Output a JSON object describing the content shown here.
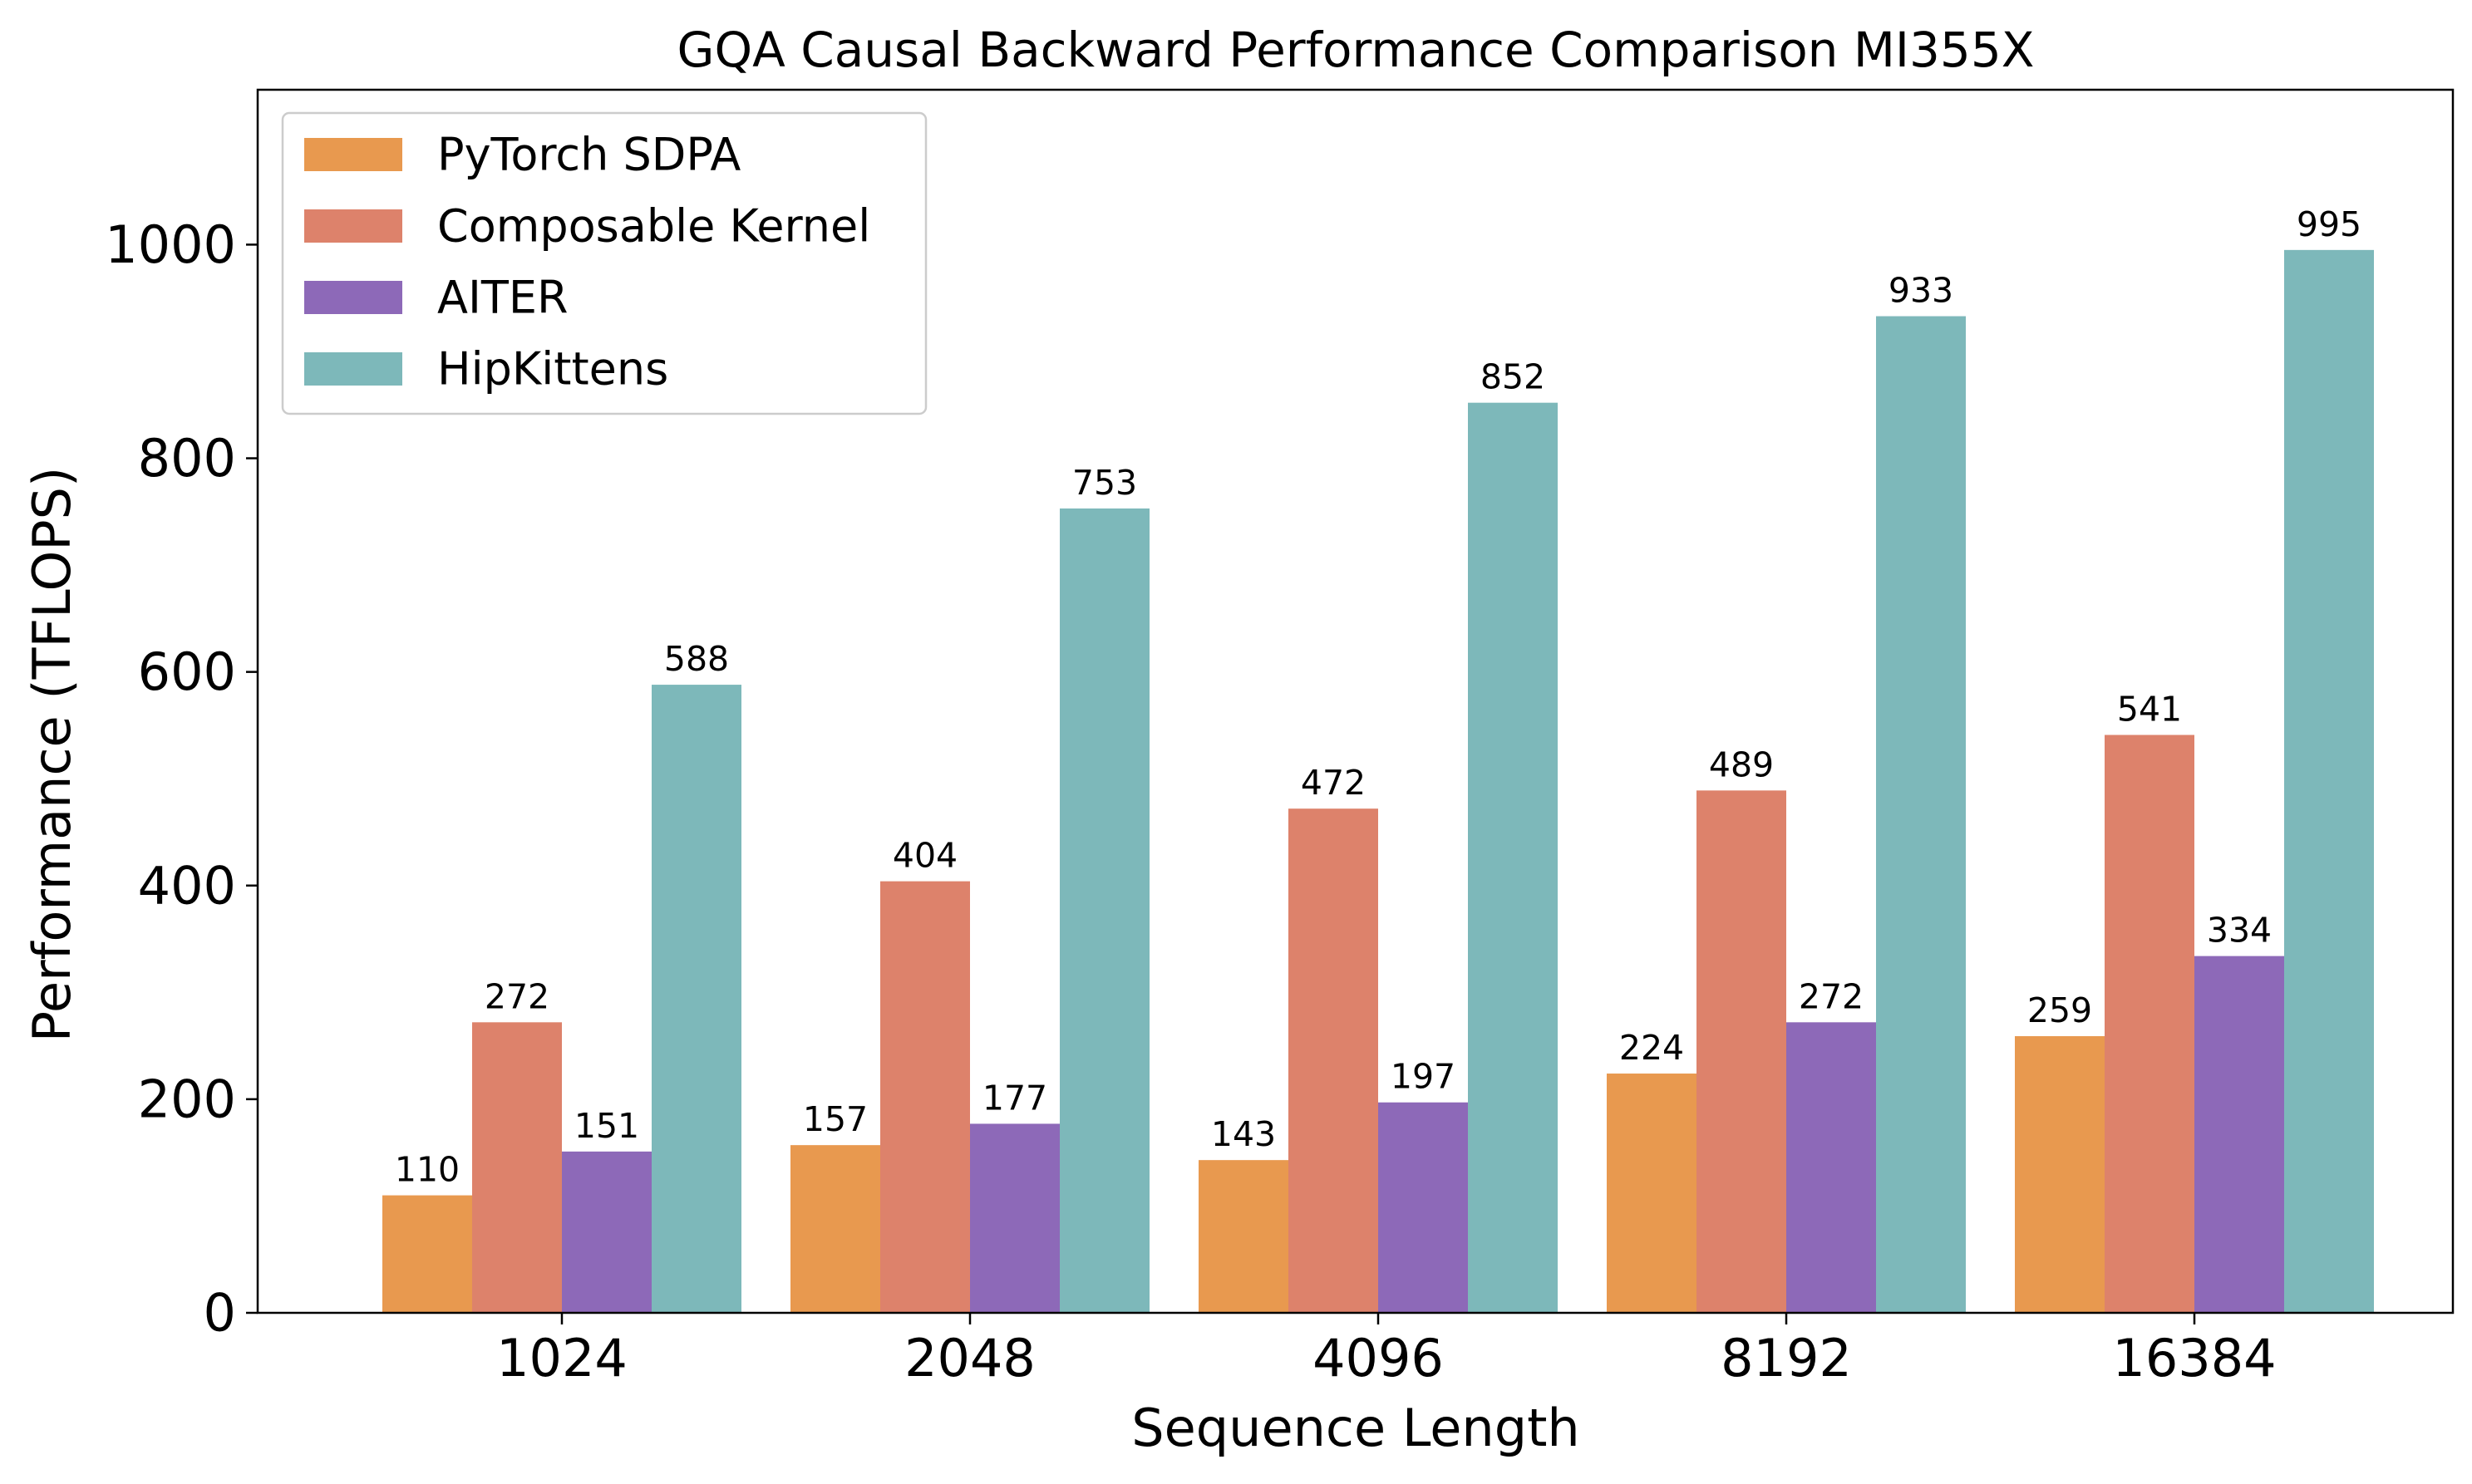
{
  "chart_data": {
    "type": "bar",
    "title": "GQA Causal Backward Performance Comparison MI355X",
    "xlabel": "Sequence Length",
    "ylabel": "Performance (TFLOPS)",
    "categories": [
      "1024",
      "2048",
      "4096",
      "8192",
      "16384"
    ],
    "ylim": [
      0,
      1145
    ],
    "yticks": [
      0,
      200,
      400,
      600,
      800,
      1000
    ],
    "grid": false,
    "legend_position": "top-left",
    "series": [
      {
        "name": "PyTorch SDPA",
        "color": "#E8994F",
        "values": [
          110,
          157,
          143,
          224,
          259
        ]
      },
      {
        "name": "Composable Kernel",
        "color": "#DD826B",
        "values": [
          272,
          404,
          472,
          489,
          541
        ]
      },
      {
        "name": "AITER",
        "color": "#8D69B8",
        "values": [
          151,
          177,
          197,
          272,
          334
        ]
      },
      {
        "name": "HipKittens",
        "color": "#7DB8BA",
        "values": [
          588,
          753,
          852,
          933,
          995
        ]
      }
    ]
  }
}
